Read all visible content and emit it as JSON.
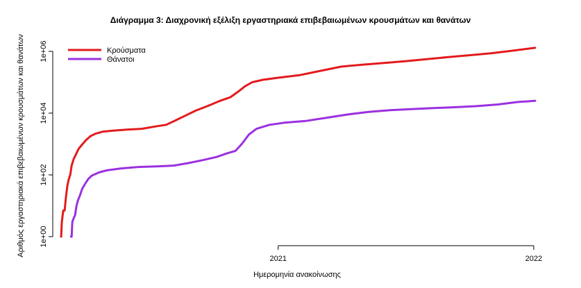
{
  "chart_data": {
    "type": "line",
    "title": "Διάγραμμα 3: Διαχρονική εξέλιξη εργαστηριακά επιβεβαιωμένων κρουσμάτων και θανάτων",
    "xlabel": "Ημερομηνία ανακοίνωσης",
    "ylabel": "Αριθμός εργαστηριακά επιβεβαιωμένων κρουσμάτων και θανάτων",
    "y_scale": "log10",
    "ylim": [
      1,
      1000000
    ],
    "xlim": [
      "2020-02-20",
      "2022-01-10"
    ],
    "x_ticks": [
      {
        "date": "2021-01-01",
        "label": "2021"
      },
      {
        "date": "2022-01-01",
        "label": "2022"
      }
    ],
    "y_ticks": [
      {
        "value": 1,
        "label": "1e+00"
      },
      {
        "value": 100,
        "label": "1e+02"
      },
      {
        "value": 10000,
        "label": "1e+04"
      },
      {
        "value": 1000000,
        "label": "1e+06"
      }
    ],
    "legend_position": "top-left",
    "series": [
      {
        "name": "Κρούσματα",
        "color": "#e31a1c",
        "points": [
          [
            "2020-02-26",
            1
          ],
          [
            "2020-02-27",
            3
          ],
          [
            "2020-02-29",
            7
          ],
          [
            "2020-03-02",
            7
          ],
          [
            "2020-03-04",
            20
          ],
          [
            "2020-03-06",
            45
          ],
          [
            "2020-03-08",
            73
          ],
          [
            "2020-03-10",
            100
          ],
          [
            "2020-03-12",
            200
          ],
          [
            "2020-03-15",
            330
          ],
          [
            "2020-03-18",
            450
          ],
          [
            "2020-03-22",
            700
          ],
          [
            "2020-03-26",
            900
          ],
          [
            "2020-04-01",
            1300
          ],
          [
            "2020-04-08",
            1800
          ],
          [
            "2020-04-15",
            2150
          ],
          [
            "2020-04-25",
            2500
          ],
          [
            "2020-05-10",
            2700
          ],
          [
            "2020-06-01",
            2950
          ],
          [
            "2020-06-20",
            3100
          ],
          [
            "2020-07-10",
            3700
          ],
          [
            "2020-07-25",
            4200
          ],
          [
            "2020-08-05",
            5500
          ],
          [
            "2020-08-20",
            8000
          ],
          [
            "2020-09-05",
            12000
          ],
          [
            "2020-09-25",
            18000
          ],
          [
            "2020-10-10",
            25000
          ],
          [
            "2020-10-25",
            33000
          ],
          [
            "2020-11-05",
            50000
          ],
          [
            "2020-11-15",
            75000
          ],
          [
            "2020-11-25",
            100000
          ],
          [
            "2020-12-10",
            120000
          ],
          [
            "2021-01-01",
            140000
          ],
          [
            "2021-02-01",
            170000
          ],
          [
            "2021-03-01",
            230000
          ],
          [
            "2021-04-01",
            320000
          ],
          [
            "2021-05-01",
            370000
          ],
          [
            "2021-06-01",
            420000
          ],
          [
            "2021-07-01",
            480000
          ],
          [
            "2021-08-01",
            560000
          ],
          [
            "2021-09-01",
            650000
          ],
          [
            "2021-10-01",
            750000
          ],
          [
            "2021-11-01",
            870000
          ],
          [
            "2021-12-01",
            1050000
          ],
          [
            "2022-01-03",
            1300000
          ]
        ]
      },
      {
        "name": "Θάνατοι",
        "color": "#9b30e0",
        "points": [
          [
            "2020-03-11",
            1
          ],
          [
            "2020-03-12",
            1
          ],
          [
            "2020-03-13",
            3
          ],
          [
            "2020-03-15",
            4
          ],
          [
            "2020-03-17",
            5
          ],
          [
            "2020-03-19",
            10
          ],
          [
            "2020-03-21",
            15
          ],
          [
            "2020-03-24",
            22
          ],
          [
            "2020-03-27",
            35
          ],
          [
            "2020-04-01",
            55
          ],
          [
            "2020-04-05",
            75
          ],
          [
            "2020-04-10",
            95
          ],
          [
            "2020-04-20",
            120
          ],
          [
            "2020-05-01",
            140
          ],
          [
            "2020-05-20",
            160
          ],
          [
            "2020-06-15",
            180
          ],
          [
            "2020-07-15",
            190
          ],
          [
            "2020-08-05",
            200
          ],
          [
            "2020-08-25",
            240
          ],
          [
            "2020-09-15",
            300
          ],
          [
            "2020-10-05",
            380
          ],
          [
            "2020-10-20",
            500
          ],
          [
            "2020-11-01",
            600
          ],
          [
            "2020-11-10",
            1000
          ],
          [
            "2020-11-20",
            2000
          ],
          [
            "2020-12-01",
            3100
          ],
          [
            "2020-12-20",
            4200
          ],
          [
            "2021-01-10",
            4900
          ],
          [
            "2021-02-10",
            5600
          ],
          [
            "2021-03-10",
            7000
          ],
          [
            "2021-04-10",
            9000
          ],
          [
            "2021-05-10",
            11000
          ],
          [
            "2021-06-10",
            12500
          ],
          [
            "2021-07-10",
            13500
          ],
          [
            "2021-08-10",
            14500
          ],
          [
            "2021-09-10",
            15500
          ],
          [
            "2021-10-10",
            16800
          ],
          [
            "2021-11-10",
            19000
          ],
          [
            "2021-12-10",
            23000
          ],
          [
            "2022-01-03",
            25000
          ]
        ]
      }
    ]
  }
}
